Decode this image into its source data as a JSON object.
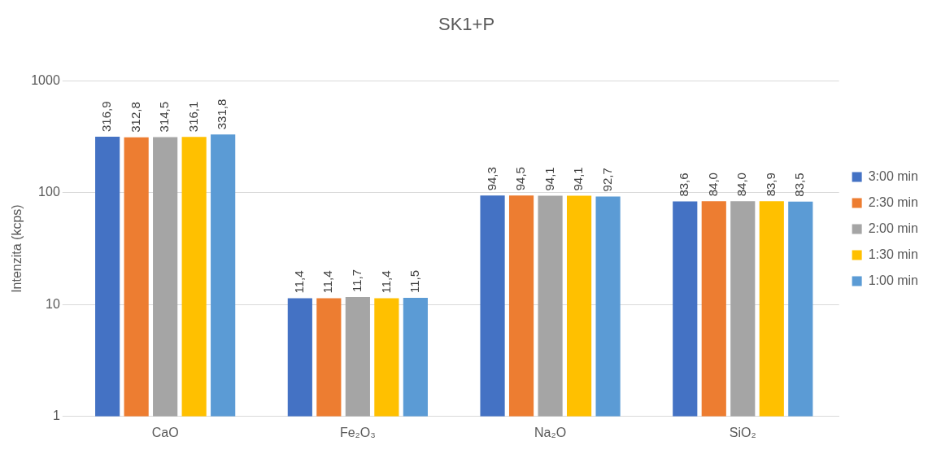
{
  "chart_data": {
    "type": "bar",
    "title": "SK1+P",
    "ylabel": "Intenzita (kcps)",
    "categories": [
      "CaO",
      "Fe₂O₃",
      "Na₂O",
      "SiO₂"
    ],
    "series": [
      {
        "name": "3:00 min",
        "color": "#4472c4",
        "values": [
          316.9,
          11.4,
          94.3,
          83.6
        ],
        "value_labels": [
          "316,9",
          "11,4",
          "94,3",
          "83,6"
        ]
      },
      {
        "name": "2:30 min",
        "color": "#ed7d31",
        "values": [
          312.8,
          11.4,
          94.5,
          84.0
        ],
        "value_labels": [
          "312,8",
          "11,4",
          "94,5",
          "84,0"
        ]
      },
      {
        "name": "2:00 min",
        "color": "#a5a5a5",
        "values": [
          314.5,
          11.7,
          94.1,
          84.0
        ],
        "value_labels": [
          "314,5",
          "11,7",
          "94,1",
          "84,0"
        ]
      },
      {
        "name": "1:30 min",
        "color": "#ffc000",
        "values": [
          316.1,
          11.4,
          94.1,
          83.9
        ],
        "value_labels": [
          "316,1",
          "11,4",
          "94,1",
          "83,9"
        ]
      },
      {
        "name": "1:00 min",
        "color": "#5b9bd5",
        "values": [
          331.8,
          11.5,
          92.7,
          83.5
        ],
        "value_labels": [
          "331,8",
          "11,5",
          "92,7",
          "83,5"
        ]
      }
    ],
    "log": true,
    "ylim": [
      1,
      1000
    ],
    "yticks": [
      1,
      10,
      100,
      1000
    ],
    "grid": "y",
    "legend": "right"
  }
}
